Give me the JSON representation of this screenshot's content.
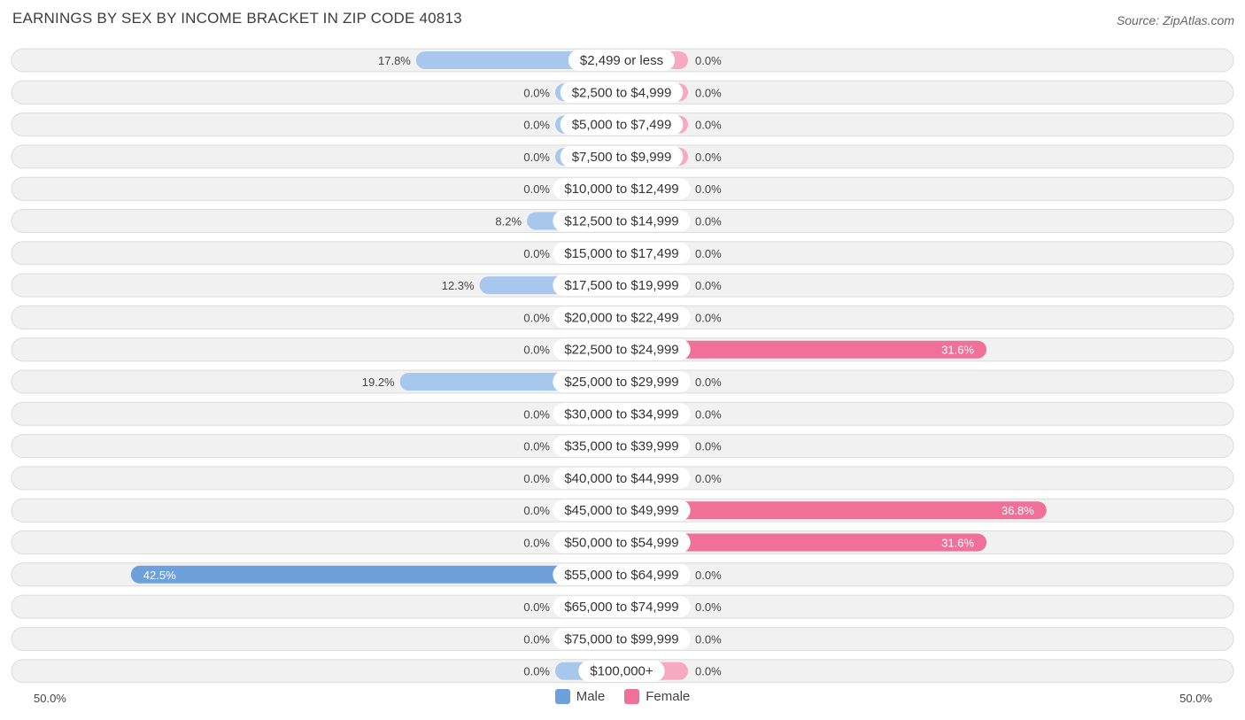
{
  "header": {
    "title": "EARNINGS BY SEX BY INCOME BRACKET IN ZIP CODE 40813",
    "source": "Source: ZipAtlas.com"
  },
  "colors": {
    "male": "#6ea0dc",
    "male_light": "#a8c7ec",
    "female": "#f07098",
    "female_light": "#f6a9c0",
    "row_bg": "#f1f1f1",
    "row_border": "#dcdcdc"
  },
  "chart_data": {
    "type": "bar",
    "orientation": "horizontal-diverging",
    "title": "EARNINGS BY SEX BY INCOME BRACKET IN ZIP CODE 40813",
    "categories": [
      "$2,499 or less",
      "$2,500 to $4,999",
      "$5,000 to $7,499",
      "$7,500 to $9,999",
      "$10,000 to $12,499",
      "$12,500 to $14,999",
      "$15,000 to $17,499",
      "$17,500 to $19,999",
      "$20,000 to $22,499",
      "$22,500 to $24,999",
      "$25,000 to $29,999",
      "$30,000 to $34,999",
      "$35,000 to $39,999",
      "$40,000 to $44,999",
      "$45,000 to $49,999",
      "$50,000 to $54,999",
      "$55,000 to $64,999",
      "$65,000 to $74,999",
      "$75,000 to $99,999",
      "$100,000+"
    ],
    "series": [
      {
        "name": "Male",
        "values": [
          17.8,
          0.0,
          0.0,
          0.0,
          0.0,
          8.2,
          0.0,
          12.3,
          0.0,
          0.0,
          19.2,
          0.0,
          0.0,
          0.0,
          0.0,
          0.0,
          42.5,
          0.0,
          0.0,
          0.0
        ],
        "labels": [
          "17.8%",
          "0.0%",
          "0.0%",
          "0.0%",
          "0.0%",
          "8.2%",
          "0.0%",
          "12.3%",
          "0.0%",
          "0.0%",
          "19.2%",
          "0.0%",
          "0.0%",
          "0.0%",
          "0.0%",
          "0.0%",
          "42.5%",
          "0.0%",
          "0.0%",
          "0.0%"
        ]
      },
      {
        "name": "Female",
        "values": [
          0.0,
          0.0,
          0.0,
          0.0,
          0.0,
          0.0,
          0.0,
          0.0,
          0.0,
          31.6,
          0.0,
          0.0,
          0.0,
          0.0,
          36.8,
          31.6,
          0.0,
          0.0,
          0.0,
          0.0
        ],
        "labels": [
          "0.0%",
          "0.0%",
          "0.0%",
          "0.0%",
          "0.0%",
          "0.0%",
          "0.0%",
          "0.0%",
          "0.0%",
          "31.6%",
          "0.0%",
          "0.0%",
          "0.0%",
          "0.0%",
          "36.8%",
          "31.6%",
          "0.0%",
          "0.0%",
          "0.0%",
          "0.0%"
        ]
      }
    ],
    "xlim": [
      -50,
      50
    ],
    "axis_labels": {
      "left": "50.0%",
      "right": "50.0%"
    },
    "legend": {
      "position": "bottom-center",
      "entries": [
        "Male",
        "Female"
      ]
    }
  }
}
